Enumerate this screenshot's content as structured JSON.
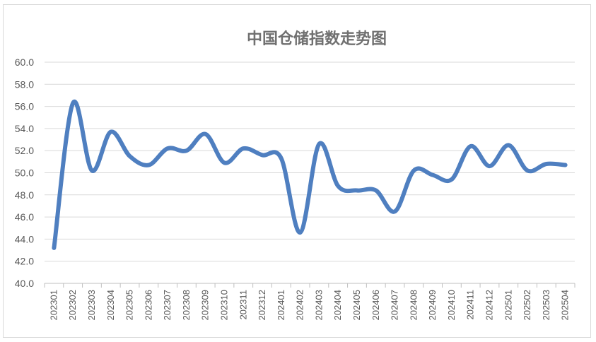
{
  "chart_data": {
    "type": "line",
    "title": "中国仓储指数走势图",
    "xlabel": "",
    "ylabel": "",
    "ylim": [
      40.0,
      60.0
    ],
    "ytick_step": 2,
    "y_tick_labels": [
      "40.0",
      "42.0",
      "44.0",
      "46.0",
      "48.0",
      "50.0",
      "52.0",
      "54.0",
      "56.0",
      "58.0",
      "60.0"
    ],
    "grid": true,
    "legend": "none",
    "line_color": "#4f7fc0",
    "categories": [
      "202301",
      "202302",
      "202303",
      "202304",
      "202305",
      "202306",
      "202307",
      "202308",
      "202309",
      "202310",
      "202311",
      "202312",
      "202401",
      "202402",
      "202403",
      "202404",
      "202405",
      "202406",
      "202407",
      "202408",
      "202409",
      "202410",
      "202411",
      "202412",
      "202501",
      "202502",
      "202503",
      "202504"
    ],
    "series": [
      {
        "values": [
          43.2,
          56.3,
          50.2,
          53.7,
          51.5,
          50.7,
          52.2,
          52.0,
          53.5,
          50.9,
          52.2,
          51.6,
          51.3,
          44.6,
          52.6,
          48.8,
          48.4,
          48.4,
          46.5,
          50.2,
          49.8,
          49.4,
          52.4,
          50.6,
          52.5,
          50.2,
          50.8,
          50.7
        ]
      }
    ]
  }
}
